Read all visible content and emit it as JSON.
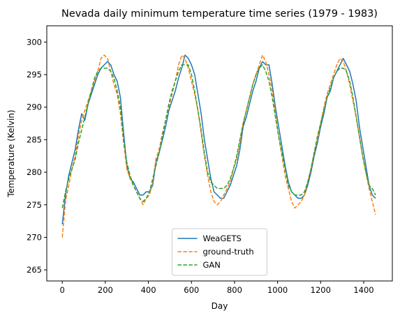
{
  "chart_data": {
    "type": "line",
    "title": "Nevada daily minimum temperature time series (1979 - 1983)",
    "xlabel": "Day",
    "ylabel": "Temperature (Kelvin)",
    "xlim": [
      -72,
      1533
    ],
    "ylim": [
      263.3,
      302.5
    ],
    "xticks": [
      0,
      200,
      400,
      600,
      800,
      1000,
      1200,
      1400
    ],
    "yticks": [
      265,
      270,
      275,
      280,
      285,
      290,
      295,
      300
    ],
    "grid": false,
    "legend_position": "lower center",
    "x": [
      0,
      15,
      30,
      45,
      60,
      75,
      90,
      105,
      120,
      135,
      150,
      165,
      180,
      195,
      210,
      225,
      240,
      255,
      270,
      285,
      300,
      315,
      330,
      345,
      360,
      375,
      390,
      405,
      420,
      435,
      450,
      465,
      480,
      495,
      510,
      525,
      540,
      555,
      570,
      585,
      600,
      615,
      630,
      645,
      660,
      675,
      690,
      705,
      720,
      735,
      750,
      765,
      780,
      795,
      810,
      825,
      840,
      855,
      870,
      885,
      900,
      915,
      930,
      945,
      960,
      975,
      990,
      1005,
      1020,
      1035,
      1050,
      1065,
      1080,
      1095,
      1110,
      1125,
      1140,
      1155,
      1170,
      1185,
      1200,
      1215,
      1230,
      1245,
      1260,
      1275,
      1290,
      1305,
      1320,
      1335,
      1350,
      1365,
      1380,
      1395,
      1410,
      1425,
      1440,
      1455
    ],
    "series": [
      {
        "name": "WeaGETS",
        "style": "solid",
        "color": "#1f77b4",
        "values": [
          272.0,
          276.5,
          279.5,
          281.5,
          283.5,
          286.5,
          289.0,
          288.0,
          290.5,
          292.0,
          293.5,
          295.0,
          296.0,
          296.5,
          297.0,
          296.5,
          295.0,
          294.0,
          291.5,
          286.0,
          281.0,
          279.0,
          278.5,
          277.5,
          276.5,
          276.5,
          277.0,
          277.0,
          278.0,
          281.5,
          283.0,
          285.0,
          287.0,
          289.5,
          291.0,
          292.5,
          294.5,
          296.0,
          298.0,
          297.5,
          296.5,
          295.0,
          292.0,
          289.0,
          285.0,
          282.0,
          279.0,
          277.0,
          276.5,
          276.0,
          276.0,
          277.0,
          278.0,
          279.5,
          281.0,
          283.5,
          287.0,
          288.5,
          290.5,
          292.5,
          294.0,
          296.0,
          297.0,
          296.5,
          296.5,
          293.5,
          290.0,
          287.0,
          284.0,
          281.0,
          278.5,
          277.0,
          276.5,
          276.0,
          276.0,
          276.5,
          278.0,
          280.0,
          282.5,
          284.5,
          287.0,
          289.0,
          291.5,
          292.5,
          294.5,
          295.5,
          296.5,
          297.5,
          296.5,
          295.5,
          293.5,
          291.0,
          287.0,
          284.0,
          281.0,
          278.0,
          276.5,
          276.0
        ]
      },
      {
        "name": "ground-truth",
        "style": "dashed",
        "color": "#ff7f0e",
        "values": [
          270.0,
          275.5,
          278.0,
          280.5,
          282.5,
          285.5,
          288.0,
          289.5,
          291.0,
          292.5,
          294.0,
          295.5,
          297.5,
          298.0,
          297.5,
          295.5,
          293.5,
          292.0,
          289.0,
          284.5,
          280.5,
          279.0,
          278.0,
          277.0,
          276.0,
          275.0,
          276.0,
          276.5,
          278.5,
          282.0,
          283.5,
          286.0,
          288.0,
          290.0,
          292.0,
          294.0,
          296.5,
          298.0,
          297.5,
          296.0,
          294.0,
          292.0,
          289.5,
          286.0,
          282.5,
          279.5,
          277.0,
          275.5,
          275.0,
          275.5,
          276.5,
          277.5,
          278.5,
          280.5,
          282.0,
          284.5,
          287.5,
          289.5,
          291.5,
          293.5,
          295.0,
          296.5,
          298.0,
          297.0,
          295.0,
          292.5,
          289.0,
          285.5,
          282.5,
          279.5,
          277.5,
          275.5,
          274.5,
          275.0,
          275.5,
          276.5,
          278.5,
          280.5,
          283.0,
          285.0,
          287.5,
          290.0,
          292.0,
          293.5,
          295.0,
          296.5,
          297.5,
          297.0,
          295.5,
          293.5,
          291.0,
          288.5,
          285.5,
          282.5,
          280.0,
          277.5,
          275.5,
          273.5
        ]
      },
      {
        "name": "GAN",
        "style": "dashed",
        "color": "#2ca02c",
        "values": [
          274.5,
          277.0,
          279.0,
          280.5,
          282.0,
          284.5,
          286.5,
          288.5,
          290.5,
          292.5,
          294.5,
          295.5,
          296.0,
          296.0,
          296.0,
          295.5,
          294.5,
          292.5,
          290.0,
          285.0,
          281.5,
          279.5,
          278.0,
          277.0,
          276.0,
          275.5,
          276.0,
          277.0,
          279.0,
          281.0,
          283.0,
          285.5,
          288.0,
          290.5,
          292.5,
          294.0,
          295.5,
          296.5,
          296.5,
          296.5,
          295.0,
          292.5,
          289.5,
          286.5,
          283.0,
          280.0,
          278.5,
          278.0,
          277.5,
          277.5,
          277.5,
          278.0,
          279.0,
          280.5,
          282.5,
          285.0,
          287.5,
          289.5,
          291.5,
          293.5,
          295.0,
          296.0,
          296.5,
          295.5,
          294.0,
          291.5,
          288.5,
          285.5,
          283.0,
          280.5,
          278.0,
          277.0,
          276.5,
          276.5,
          276.5,
          277.0,
          278.5,
          280.5,
          283.0,
          285.5,
          287.5,
          289.5,
          291.5,
          293.0,
          294.5,
          295.5,
          296.0,
          296.0,
          295.5,
          294.0,
          291.5,
          288.5,
          285.5,
          282.5,
          280.0,
          278.0,
          277.5,
          276.5
        ]
      }
    ]
  }
}
